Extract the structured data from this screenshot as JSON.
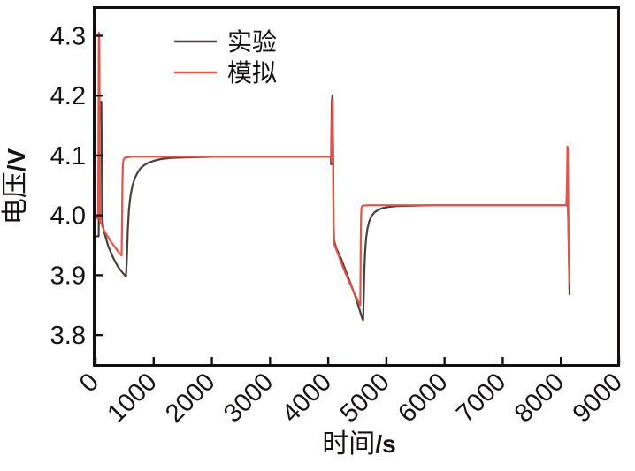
{
  "chart_data": {
    "type": "line",
    "title": "",
    "xlabel": "时间/s",
    "xlabel_cn": "时间",
    "xlabel_unit": "/s",
    "ylabel": "电压/V",
    "ylabel_cn": "电压",
    "ylabel_unit": "/V",
    "xlim": [
      0,
      9000
    ],
    "ylim": [
      3.75,
      4.345
    ],
    "xticks": [
      0,
      1000,
      2000,
      3000,
      4000,
      5000,
      6000,
      7000,
      8000,
      9000
    ],
    "yticks": [
      3.8,
      3.9,
      4.0,
      4.1,
      4.2,
      4.3
    ],
    "grid": false,
    "frame_color": "#141010",
    "legend": {
      "position": "upper-left-inside",
      "entries": [
        {
          "label": "实验",
          "color": "#49403d"
        },
        {
          "label": "模拟",
          "color": "#e0564a"
        }
      ]
    },
    "series": [
      {
        "name": "实验",
        "color": "#49403d",
        "width": 2.2,
        "points": [
          [
            0,
            3.965
          ],
          [
            55,
            3.965
          ],
          [
            65,
            4.15
          ],
          [
            80,
            4.185
          ],
          [
            100,
            4.19
          ],
          [
            108,
            4.09
          ],
          [
            115,
            3.995
          ],
          [
            140,
            3.975
          ],
          [
            220,
            3.948
          ],
          [
            300,
            3.93
          ],
          [
            380,
            3.915
          ],
          [
            450,
            3.906
          ],
          [
            500,
            3.9
          ],
          [
            525,
            3.898
          ],
          [
            540,
            3.93
          ],
          [
            555,
            3.975
          ],
          [
            575,
            4.01
          ],
          [
            600,
            4.032
          ],
          [
            635,
            4.05
          ],
          [
            675,
            4.062
          ],
          [
            720,
            4.071
          ],
          [
            775,
            4.079
          ],
          [
            840,
            4.084
          ],
          [
            910,
            4.088
          ],
          [
            1000,
            4.091
          ],
          [
            1120,
            4.094
          ],
          [
            1300,
            4.096
          ],
          [
            1600,
            4.097
          ],
          [
            2100,
            4.098
          ],
          [
            3000,
            4.098
          ],
          [
            4042,
            4.098
          ],
          [
            4050,
            4.085
          ],
          [
            4060,
            4.19
          ],
          [
            4075,
            4.2
          ],
          [
            4085,
            4.1
          ],
          [
            4092,
            3.985
          ],
          [
            4100,
            3.958
          ],
          [
            4140,
            3.945
          ],
          [
            4220,
            3.928
          ],
          [
            4310,
            3.905
          ],
          [
            4400,
            3.882
          ],
          [
            4480,
            3.861
          ],
          [
            4545,
            3.84
          ],
          [
            4585,
            3.827
          ],
          [
            4600,
            3.825
          ],
          [
            4612,
            3.87
          ],
          [
            4622,
            3.91
          ],
          [
            4635,
            3.94
          ],
          [
            4652,
            3.962
          ],
          [
            4675,
            3.978
          ],
          [
            4705,
            3.99
          ],
          [
            4745,
            3.999
          ],
          [
            4795,
            4.005
          ],
          [
            4855,
            4.009
          ],
          [
            4930,
            4.012
          ],
          [
            5030,
            4.014
          ],
          [
            5180,
            4.0155
          ],
          [
            5420,
            4.016
          ],
          [
            5800,
            4.017
          ],
          [
            6500,
            4.017
          ],
          [
            7400,
            4.017
          ],
          [
            8092,
            4.017
          ],
          [
            8105,
            4.033
          ],
          [
            8118,
            4.028
          ],
          [
            8128,
            3.99
          ],
          [
            8138,
            3.93
          ],
          [
            8148,
            3.868
          ]
        ]
      },
      {
        "name": "模拟",
        "color": "#e0564a",
        "width": 2.2,
        "points": [
          [
            0,
            3.995
          ],
          [
            46,
            3.995
          ],
          [
            53,
            4.2
          ],
          [
            58,
            4.305
          ],
          [
            66,
            4.295
          ],
          [
            74,
            4.05
          ],
          [
            80,
            3.99
          ],
          [
            150,
            3.974
          ],
          [
            250,
            3.958
          ],
          [
            340,
            3.946
          ],
          [
            410,
            3.937
          ],
          [
            448,
            3.933
          ],
          [
            456,
            3.99
          ],
          [
            462,
            4.05
          ],
          [
            470,
            4.085
          ],
          [
            482,
            4.093
          ],
          [
            500,
            4.096
          ],
          [
            540,
            4.097
          ],
          [
            620,
            4.098
          ],
          [
            1000,
            4.098
          ],
          [
            2000,
            4.098
          ],
          [
            3000,
            4.098
          ],
          [
            4045,
            4.098
          ],
          [
            4058,
            4.09
          ],
          [
            4068,
            4.19
          ],
          [
            4078,
            4.193
          ],
          [
            4086,
            4.05
          ],
          [
            4092,
            3.96
          ],
          [
            4110,
            3.95
          ],
          [
            4180,
            3.932
          ],
          [
            4260,
            3.912
          ],
          [
            4340,
            3.893
          ],
          [
            4420,
            3.876
          ],
          [
            4490,
            3.862
          ],
          [
            4540,
            3.851
          ],
          [
            4552,
            3.85
          ],
          [
            4560,
            3.96
          ],
          [
            4566,
            4.0
          ],
          [
            4572,
            4.012
          ],
          [
            4585,
            4.0155
          ],
          [
            4620,
            4.0165
          ],
          [
            4700,
            4.017
          ],
          [
            5000,
            4.017
          ],
          [
            6000,
            4.017
          ],
          [
            7000,
            4.017
          ],
          [
            8000,
            4.017
          ],
          [
            8095,
            4.017
          ],
          [
            8105,
            4.05
          ],
          [
            8112,
            4.115
          ],
          [
            8120,
            4.11
          ],
          [
            8128,
            4.02
          ],
          [
            8134,
            3.96
          ],
          [
            8144,
            3.887
          ]
        ]
      }
    ]
  }
}
